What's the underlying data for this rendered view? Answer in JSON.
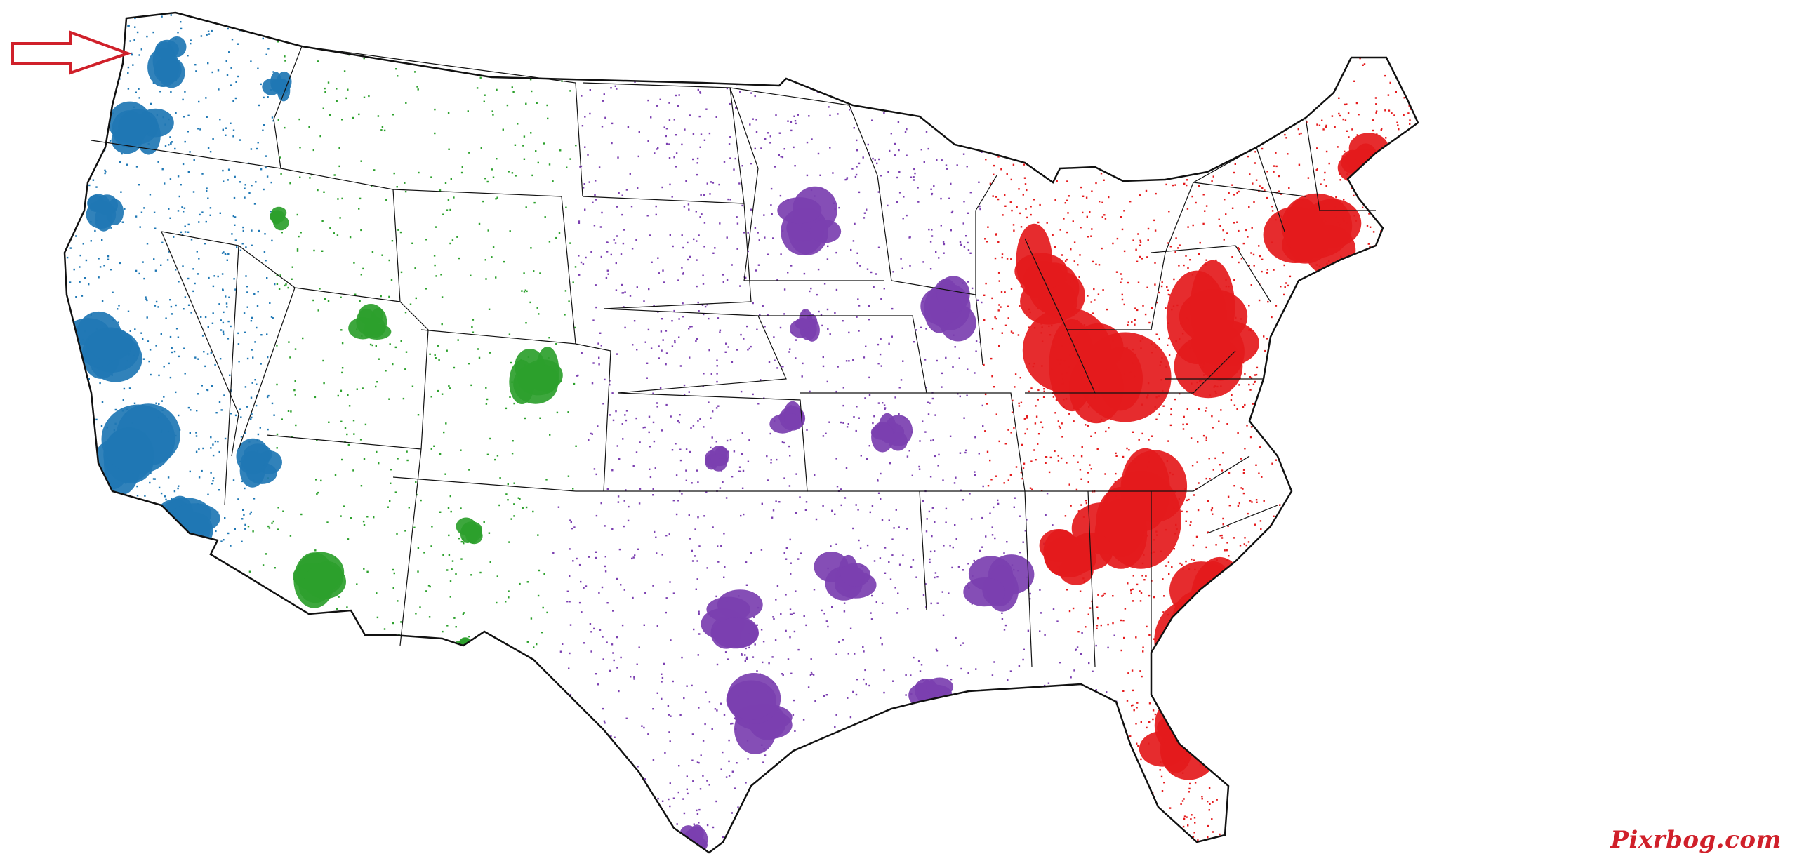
{
  "map": {
    "subject": "contiguous-united-states",
    "regions": [
      {
        "id": "pacific",
        "color": "#1f77b4"
      },
      {
        "id": "mountain",
        "color": "#2ca02c"
      },
      {
        "id": "central",
        "color": "#7b3fb0"
      },
      {
        "id": "eastern",
        "color": "#e41a1c"
      }
    ],
    "border_color": "#111111",
    "pointer_arrow_color": "#d0202a"
  },
  "watermark": {
    "text": "Pixrbog.com"
  }
}
